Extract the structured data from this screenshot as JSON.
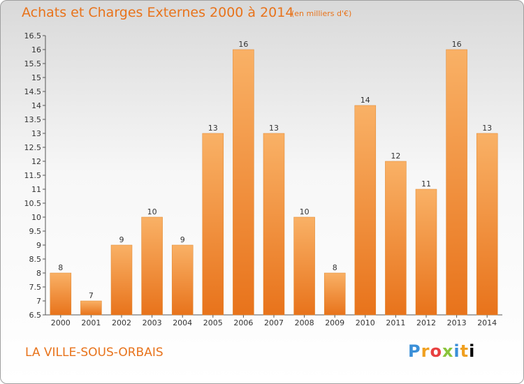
{
  "title": "Achats et Charges Externes 2000 à 2014",
  "unit": "(en milliers d'€)",
  "commune": "LA VILLE-SOUS-ORBAIS",
  "brand": "Proxiti",
  "colors": {
    "accent": "#e8731b",
    "bar_light": "#f9b166",
    "bar_dark": "#e8731b"
  },
  "chart_data": {
    "type": "bar",
    "categories": [
      "2000",
      "2001",
      "2002",
      "2003",
      "2004",
      "2005",
      "2006",
      "2007",
      "2008",
      "2009",
      "2010",
      "2011",
      "2012",
      "2013",
      "2014"
    ],
    "values": [
      8,
      7,
      9,
      10,
      9,
      13,
      16,
      13,
      10,
      8,
      14,
      12,
      11,
      16,
      13
    ],
    "ylim": [
      6.5,
      16.5
    ],
    "yticks": [
      6.5,
      7,
      7.5,
      8,
      8.5,
      9,
      9.5,
      10,
      10.5,
      11,
      11.5,
      12,
      12.5,
      13,
      13.5,
      14,
      14.5,
      15,
      15.5,
      16,
      16.5
    ],
    "grid": false,
    "title": "Achats et Charges Externes 2000 à 2014",
    "subtitle": "(en milliers d'€)"
  }
}
